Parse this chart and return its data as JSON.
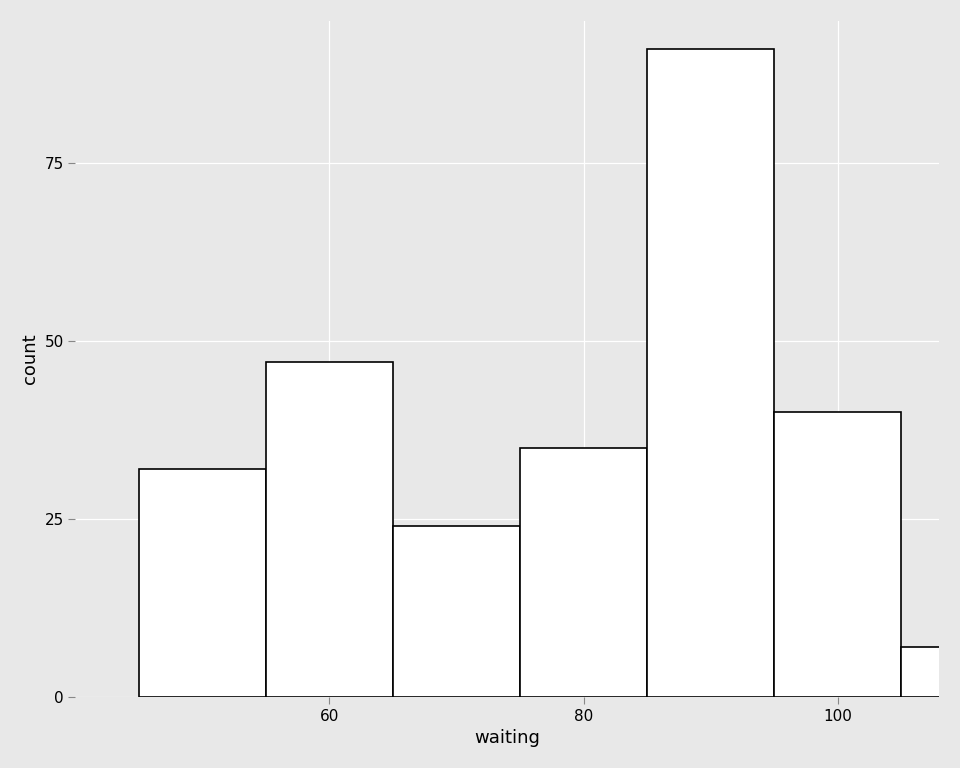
{
  "bin_edges": [
    45,
    55,
    65,
    75,
    85,
    95,
    105,
    115
  ],
  "counts": [
    32,
    47,
    24,
    35,
    91,
    40,
    7
  ],
  "xlim": [
    40,
    108
  ],
  "ylim": [
    0,
    95
  ],
  "yticks": [
    0,
    25,
    50,
    75
  ],
  "xticks": [
    60,
    80,
    100
  ],
  "xlabel": "waiting",
  "ylabel": "count",
  "bar_facecolor": "white",
  "bar_edgecolor": "black",
  "background_color": "#E8E8E8",
  "grid_color": "white",
  "label_fontsize": 13,
  "tick_fontsize": 11
}
